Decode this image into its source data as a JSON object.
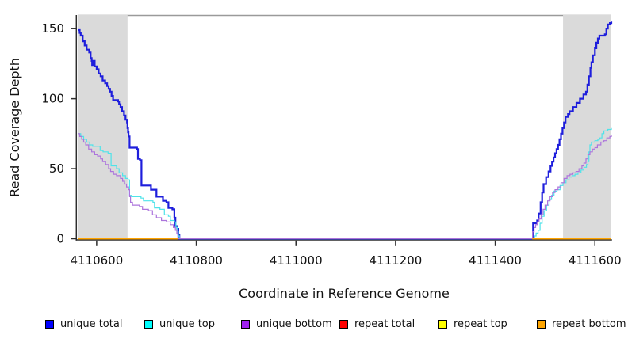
{
  "chart_data": {
    "type": "line",
    "title": "",
    "xlabel": "Coordinate in Reference Genome",
    "ylabel": "Read Coverage Depth",
    "x_ticks": [
      4110600,
      4110800,
      4111000,
      4111200,
      4111400,
      4111600
    ],
    "y_ticks": [
      0,
      50,
      100,
      150
    ],
    "xlim": [
      4110562,
      4111633
    ],
    "ylim": [
      0,
      160
    ],
    "grid": false,
    "legend_position": "bottom",
    "shade_color": "#DADADA",
    "shaded_regions": [
      {
        "x0": 4110562,
        "x1": 4110662
      },
      {
        "x0": 4111536,
        "x1": 4111633
      }
    ],
    "draw_order": [
      3,
      4,
      0,
      1,
      2,
      5
    ],
    "series": [
      {
        "name": "unique-total",
        "label": "unique total",
        "color": "#0000FF",
        "line_color": "#1E1EDC",
        "line_width": 2.2,
        "segments": [
          [
            [
              4110562,
              149
            ],
            [
              4110566,
              147
            ],
            [
              4110568,
              145
            ],
            [
              4110572,
              141
            ],
            [
              4110576,
              138
            ],
            [
              4110580,
              135
            ],
            [
              4110585,
              133
            ],
            [
              4110588,
              129
            ],
            [
              4110590,
              127
            ],
            [
              4110591,
              124
            ],
            [
              4110593,
              127
            ],
            [
              4110596,
              123
            ],
            [
              4110600,
              121
            ],
            [
              4110604,
              118
            ],
            [
              4110608,
              116
            ],
            [
              4110612,
              113
            ],
            [
              4110617,
              111
            ],
            [
              4110621,
              109
            ],
            [
              4110624,
              107
            ],
            [
              4110627,
              105
            ],
            [
              4110630,
              102
            ],
            [
              4110633,
              99
            ],
            [
              4110643,
              98
            ],
            [
              4110645,
              96
            ],
            [
              4110648,
              94
            ],
            [
              4110651,
              91
            ],
            [
              4110655,
              88
            ],
            [
              4110658,
              85
            ],
            [
              4110661,
              83
            ],
            [
              4110662,
              79
            ],
            [
              4110663,
              76
            ],
            [
              4110664,
              73
            ],
            [
              4110666,
              65
            ],
            [
              4110681,
              64
            ],
            [
              4110683,
              57
            ],
            [
              4110687,
              56
            ],
            [
              4110690,
              38
            ],
            [
              4110705,
              38
            ],
            [
              4110709,
              35
            ],
            [
              4110717,
              35
            ],
            [
              4110720,
              30
            ],
            [
              4110729,
              30
            ],
            [
              4110733,
              27
            ],
            [
              4110740,
              26
            ],
            [
              4110744,
              22
            ],
            [
              4110752,
              21
            ],
            [
              4110756,
              15
            ],
            [
              4110758,
              9
            ],
            [
              4110762,
              7
            ],
            [
              4110764,
              3
            ],
            [
              4110766,
              0
            ],
            [
              4111475,
              0
            ],
            [
              4111476,
              11
            ],
            [
              4111484,
              13
            ],
            [
              4111487,
              18
            ],
            [
              4111491,
              26
            ],
            [
              4111494,
              33
            ],
            [
              4111497,
              39
            ],
            [
              4111502,
              44
            ],
            [
              4111507,
              48
            ],
            [
              4111511,
              52
            ],
            [
              4111514,
              55
            ],
            [
              4111517,
              58
            ],
            [
              4111520,
              61
            ],
            [
              4111523,
              64
            ],
            [
              4111526,
              67
            ],
            [
              4111529,
              71
            ],
            [
              4111532,
              75
            ],
            [
              4111535,
              79
            ],
            [
              4111538,
              83
            ],
            [
              4111541,
              87
            ],
            [
              4111546,
              89
            ],
            [
              4111549,
              91
            ],
            [
              4111556,
              94
            ],
            [
              4111563,
              97
            ],
            [
              4111570,
              100
            ],
            [
              4111577,
              103
            ],
            [
              4111582,
              105
            ],
            [
              4111585,
              110
            ],
            [
              4111588,
              116
            ],
            [
              4111591,
              122
            ],
            [
              4111593,
              126
            ],
            [
              4111596,
              131
            ],
            [
              4111600,
              136
            ],
            [
              4111603,
              140
            ],
            [
              4111606,
              143
            ],
            [
              4111609,
              145
            ],
            [
              4111620,
              146
            ],
            [
              4111623,
              150
            ],
            [
              4111626,
              153
            ],
            [
              4111630,
              154
            ],
            [
              4111633,
              155
            ]
          ]
        ]
      },
      {
        "name": "unique-top",
        "label": "unique top",
        "color": "#00FFFF",
        "line_color": "#4FE3E9",
        "line_width": 1.2,
        "segments": [
          [
            [
              4110562,
              75
            ],
            [
              4110568,
              73
            ],
            [
              4110574,
              71
            ],
            [
              4110580,
              69
            ],
            [
              4110586,
              67
            ],
            [
              4110592,
              66
            ],
            [
              4110604,
              66
            ],
            [
              4110607,
              63
            ],
            [
              4110613,
              62
            ],
            [
              4110623,
              61
            ],
            [
              4110629,
              52
            ],
            [
              4110640,
              50
            ],
            [
              4110645,
              47
            ],
            [
              4110652,
              45
            ],
            [
              4110658,
              43
            ],
            [
              4110663,
              42
            ],
            [
              4110666,
              31
            ],
            [
              4110670,
              30
            ],
            [
              4110689,
              29
            ],
            [
              4110694,
              27
            ],
            [
              4110713,
              26
            ],
            [
              4110716,
              22
            ],
            [
              4110727,
              21
            ],
            [
              4110736,
              17
            ],
            [
              4110744,
              16
            ],
            [
              4110748,
              13
            ],
            [
              4110756,
              12
            ],
            [
              4110759,
              8
            ],
            [
              4110762,
              5
            ],
            [
              4110764,
              2
            ],
            [
              4110766,
              0
            ],
            [
              4111478,
              0
            ],
            [
              4111479,
              2
            ],
            [
              4111482,
              4
            ],
            [
              4111486,
              6
            ],
            [
              4111490,
              11
            ],
            [
              4111494,
              16
            ],
            [
              4111498,
              20
            ],
            [
              4111503,
              24
            ],
            [
              4111508,
              28
            ],
            [
              4111513,
              31
            ],
            [
              4111518,
              34
            ],
            [
              4111524,
              35
            ],
            [
              4111530,
              38
            ],
            [
              4111536,
              40
            ],
            [
              4111542,
              42
            ],
            [
              4111548,
              44
            ],
            [
              4111554,
              45
            ],
            [
              4111560,
              46
            ],
            [
              4111566,
              47
            ],
            [
              4111572,
              49
            ],
            [
              4111578,
              51
            ],
            [
              4111583,
              53
            ],
            [
              4111586,
              55
            ],
            [
              4111588,
              62
            ],
            [
              4111590,
              67
            ],
            [
              4111593,
              69
            ],
            [
              4111600,
              70
            ],
            [
              4111606,
              71
            ],
            [
              4111610,
              72
            ],
            [
              4111614,
              75
            ],
            [
              4111618,
              77
            ],
            [
              4111626,
              78
            ],
            [
              4111633,
              79
            ]
          ]
        ]
      },
      {
        "name": "unique-bottom",
        "label": "unique bottom",
        "color": "#A020F0",
        "line_color": "#AC74DC",
        "line_width": 1.2,
        "segments": [
          [
            [
              4110562,
              75
            ],
            [
              4110566,
              73
            ],
            [
              4110570,
              71
            ],
            [
              4110574,
              69
            ],
            [
              4110578,
              67
            ],
            [
              4110584,
              64
            ],
            [
              4110590,
              62
            ],
            [
              4110596,
              60
            ],
            [
              4110602,
              59
            ],
            [
              4110608,
              57
            ],
            [
              4110612,
              55
            ],
            [
              4110618,
              53
            ],
            [
              4110624,
              50
            ],
            [
              4110628,
              48
            ],
            [
              4110634,
              46
            ],
            [
              4110640,
              45
            ],
            [
              4110648,
              43
            ],
            [
              4110652,
              41
            ],
            [
              4110656,
              39
            ],
            [
              4110660,
              37
            ],
            [
              4110664,
              35
            ],
            [
              4110666,
              30
            ],
            [
              4110668,
              26
            ],
            [
              4110672,
              24
            ],
            [
              4110686,
              23
            ],
            [
              4110692,
              21
            ],
            [
              4110704,
              20
            ],
            [
              4110712,
              17
            ],
            [
              4110720,
              15
            ],
            [
              4110730,
              13
            ],
            [
              4110740,
              12
            ],
            [
              4110748,
              10
            ],
            [
              4110754,
              8
            ],
            [
              4110758,
              6
            ],
            [
              4110761,
              4
            ],
            [
              4110763,
              0
            ],
            [
              4111474,
              0
            ],
            [
              4111475,
              5
            ],
            [
              4111478,
              8
            ],
            [
              4111481,
              10
            ],
            [
              4111484,
              12
            ],
            [
              4111488,
              14
            ],
            [
              4111492,
              17
            ],
            [
              4111496,
              21
            ],
            [
              4111500,
              24
            ],
            [
              4111505,
              27
            ],
            [
              4111510,
              30
            ],
            [
              4111515,
              33
            ],
            [
              4111520,
              35
            ],
            [
              4111526,
              37
            ],
            [
              4111532,
              40
            ],
            [
              4111538,
              43
            ],
            [
              4111544,
              45
            ],
            [
              4111550,
              46
            ],
            [
              4111556,
              47
            ],
            [
              4111562,
              48
            ],
            [
              4111568,
              50
            ],
            [
              4111574,
              52
            ],
            [
              4111578,
              54
            ],
            [
              4111582,
              57
            ],
            [
              4111586,
              60
            ],
            [
              4111590,
              62
            ],
            [
              4111595,
              64
            ],
            [
              4111600,
              65
            ],
            [
              4111605,
              67
            ],
            [
              4111612,
              69
            ],
            [
              4111618,
              70
            ],
            [
              4111624,
              72
            ],
            [
              4111630,
              73
            ],
            [
              4111633,
              74
            ]
          ]
        ]
      },
      {
        "name": "repeat-total",
        "label": "repeat total",
        "color": "#FF0000",
        "line_color": "#E02020",
        "line_width": 1.2,
        "segments": [
          [
            [
              4110562,
              0
            ],
            [
              4110764,
              0
            ]
          ],
          [
            [
              4111474,
              0
            ],
            [
              4111633,
              0
            ]
          ]
        ]
      },
      {
        "name": "repeat-top",
        "label": "repeat top",
        "color": "#FFFF00",
        "line_color": "#F2E000",
        "line_width": 1.2,
        "segments": [
          [
            [
              4110562,
              0
            ],
            [
              4110764,
              0
            ]
          ],
          [
            [
              4111474,
              0
            ],
            [
              4111633,
              0
            ]
          ]
        ]
      },
      {
        "name": "repeat-bottom",
        "label": "repeat bottom",
        "color": "#FFA500",
        "line_color": "#FFA400",
        "line_width": 1.7,
        "segments": [
          [
            [
              4110562,
              0
            ],
            [
              4110764,
              0
            ]
          ],
          [
            [
              4111474,
              0
            ],
            [
              4111633,
              0
            ]
          ]
        ]
      }
    ]
  },
  "legend": {
    "items": [
      {
        "label": "unique total",
        "color": "#0000FF"
      },
      {
        "label": "unique top",
        "color": "#00FFFF"
      },
      {
        "label": "unique bottom",
        "color": "#A020F0"
      },
      {
        "label": "repeat total",
        "color": "#FF0000"
      },
      {
        "label": "repeat top",
        "color": "#FFFF00"
      },
      {
        "label": "repeat bottom",
        "color": "#FFA500"
      }
    ]
  }
}
